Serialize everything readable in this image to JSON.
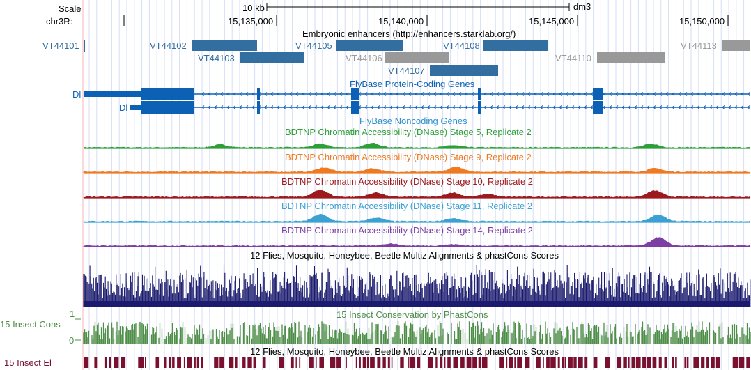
{
  "header": {
    "scale_label": "Scale",
    "chrom_label": "chr3R:",
    "scale_bar_label": "10 kb",
    "assembly": "dm3",
    "positions": [
      "15,135,000",
      "15,140,000",
      "15,145,000",
      "15,150,000"
    ]
  },
  "tracks": {
    "enhancers": {
      "title": "Embryonic enhancers (http://enhancers.starklab.org/)",
      "color": "#336ea0",
      "gray_color": "#999999",
      "items": [
        {
          "name": "VT44101",
          "dark": true
        },
        {
          "name": "VT44102",
          "dark": true
        },
        {
          "name": "VT44103",
          "dark": true
        },
        {
          "name": "VT44105",
          "dark": true
        },
        {
          "name": "VT44106",
          "dark": false
        },
        {
          "name": "VT44107",
          "dark": true
        },
        {
          "name": "VT44108",
          "dark": true
        },
        {
          "name": "VT44110",
          "dark": false
        },
        {
          "name": "VT44113",
          "dark": false
        }
      ]
    },
    "protein_genes": {
      "title": "FlyBase Protein-Coding Genes",
      "color": "#0d61b5",
      "gene_labels": [
        "Dl",
        "Dl"
      ]
    },
    "noncoding": {
      "title": "FlyBase Noncoding Genes",
      "color": "#2c8fcf"
    },
    "dnase": [
      {
        "title": "BDTNP Chromatin Accessibility (DNase) Stage 5, Replicate 2",
        "color": "#2e9e38"
      },
      {
        "title": "BDTNP Chromatin Accessibility (DNase) Stage 9, Replicate 2",
        "color": "#ee7b22"
      },
      {
        "title": "BDTNP Chromatin Accessibility (DNase) Stage 10, Replicate 2",
        "color": "#9c1a1e"
      },
      {
        "title": "BDTNP Chromatin Accessibility (DNase) Stage 11, Replicate 2",
        "color": "#3aa1d2"
      },
      {
        "title": "BDTNP Chromatin Accessibility (DNase) Stage 14, Replicate 2",
        "color": "#7d3fa3"
      }
    ],
    "multiz": {
      "title": "12 Flies, Mosquito, Honeybee, Beetle Multiz Alignments & phastCons Scores",
      "color": "#1a1a6e"
    },
    "phastcons": {
      "title": "15 Insect Conservation by PhastCons",
      "side_label": "15 Insect Cons",
      "ymax": "1",
      "ymin": "0",
      "color": "#4f8f4a"
    },
    "elements": {
      "title": "12 Flies, Mosquito, Honeybee, Beetle Multiz Alignments & phastCons Scores",
      "side_label": "15 Insect El",
      "color": "#7a1030"
    }
  }
}
